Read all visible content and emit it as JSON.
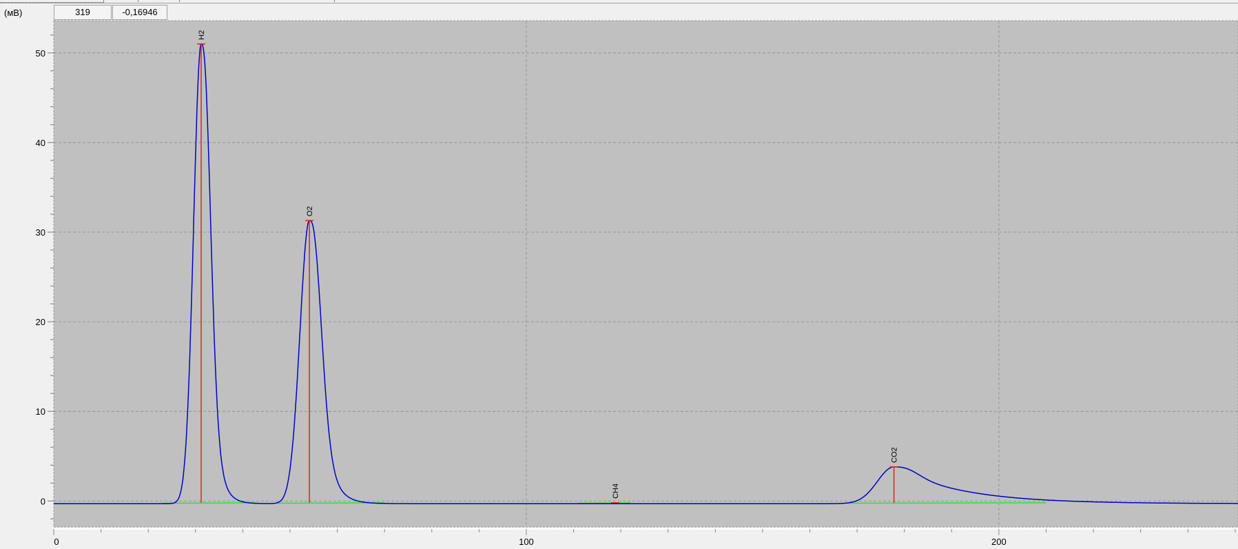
{
  "toolbar": {
    "cursor_x": "319",
    "cursor_y": "-0,16946"
  },
  "chart_data": {
    "type": "line",
    "title": "",
    "xlabel": "",
    "ylabel": "(мВ)",
    "xlim": [
      0,
      250.6
    ],
    "ylim": [
      -2.9,
      53.6
    ],
    "x_ticks": [
      0,
      100,
      200
    ],
    "x_tick_labels": [
      "0",
      "100",
      "200"
    ],
    "y_ticks": [
      0,
      10,
      20,
      30,
      40,
      50
    ],
    "y_tick_labels": [
      "0",
      "10",
      "20",
      "30",
      "40",
      "50"
    ],
    "grid": true,
    "baseline": -0.3,
    "peaks": [
      {
        "name": "H2",
        "retention": 31.2,
        "height": 51.0
      },
      {
        "name": "O2",
        "retention": 54.1,
        "height": 31.3
      },
      {
        "name": "CH4",
        "retention": 118.8,
        "height": -0.2
      },
      {
        "name": "CO2",
        "retention": 177.8,
        "height": 3.8
      }
    ],
    "colors": {
      "plot_bg": "#c0c0c0",
      "signal": "#0000c8",
      "peak_marker": "#e02020",
      "baseline_fit": "#30e030",
      "grid": "#8a8a8a"
    }
  }
}
